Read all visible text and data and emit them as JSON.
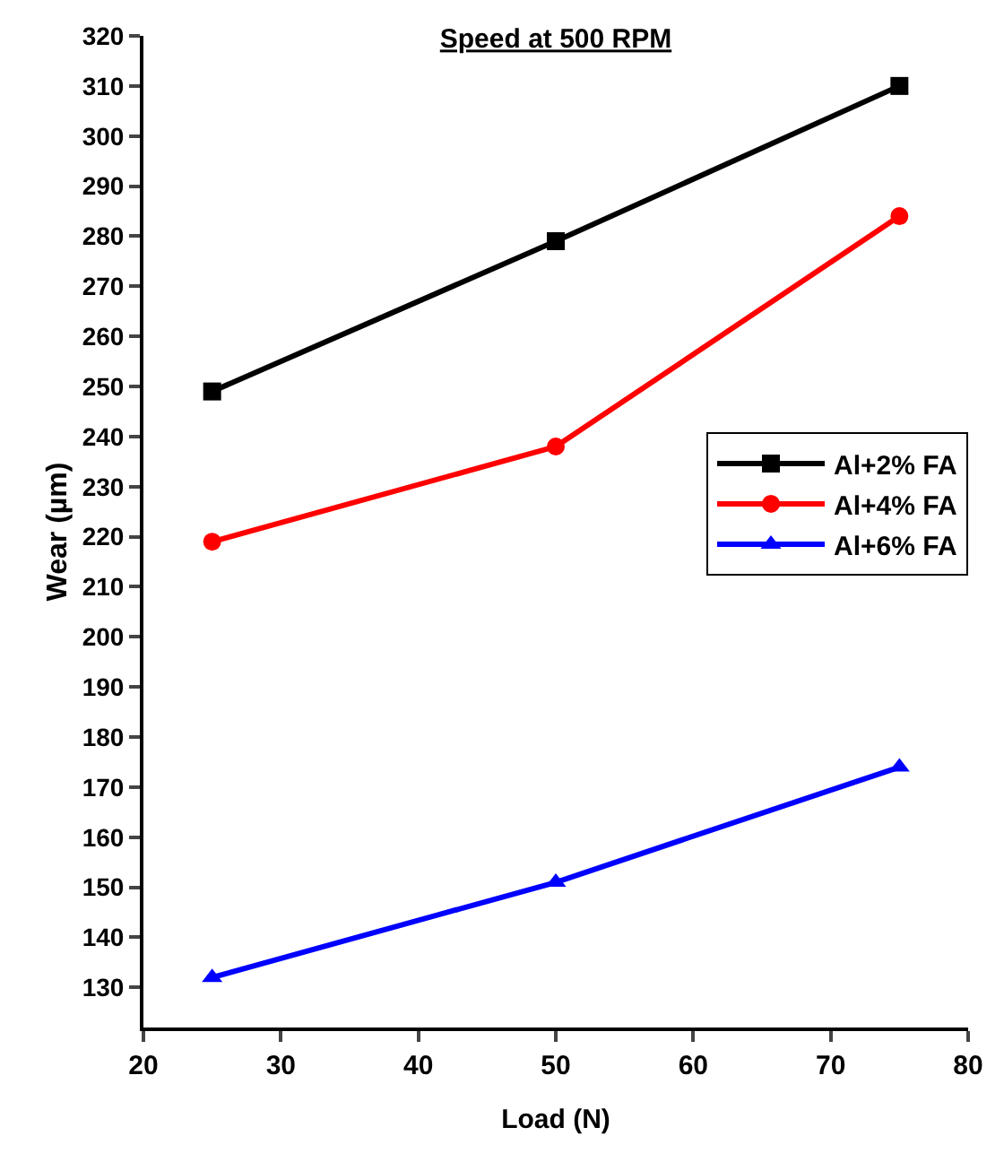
{
  "chart_data": {
    "type": "line",
    "title": "Speed at 500 RPM",
    "xlabel": "Load (N)",
    "ylabel": "Wear (µm)",
    "x": [
      25,
      50,
      75
    ],
    "series": [
      {
        "name": "Al+2% FA",
        "color": "#000000",
        "marker": "square",
        "values": [
          249,
          279,
          310
        ]
      },
      {
        "name": "Al+4% FA",
        "color": "#ff0000",
        "marker": "circle",
        "values": [
          219,
          238,
          284
        ]
      },
      {
        "name": "Al+6% FA",
        "color": "#0000ff",
        "marker": "triangle",
        "values": [
          132,
          151,
          174
        ]
      }
    ],
    "xlim": [
      20,
      80
    ],
    "xticks": [
      20,
      30,
      40,
      50,
      60,
      70,
      80
    ],
    "ylim": [
      122,
      320
    ],
    "yticks": [
      130,
      140,
      150,
      160,
      170,
      180,
      190,
      200,
      210,
      220,
      230,
      240,
      250,
      260,
      270,
      280,
      290,
      300,
      310,
      320
    ],
    "grid": false,
    "legend": "right",
    "line_style": "solid"
  }
}
